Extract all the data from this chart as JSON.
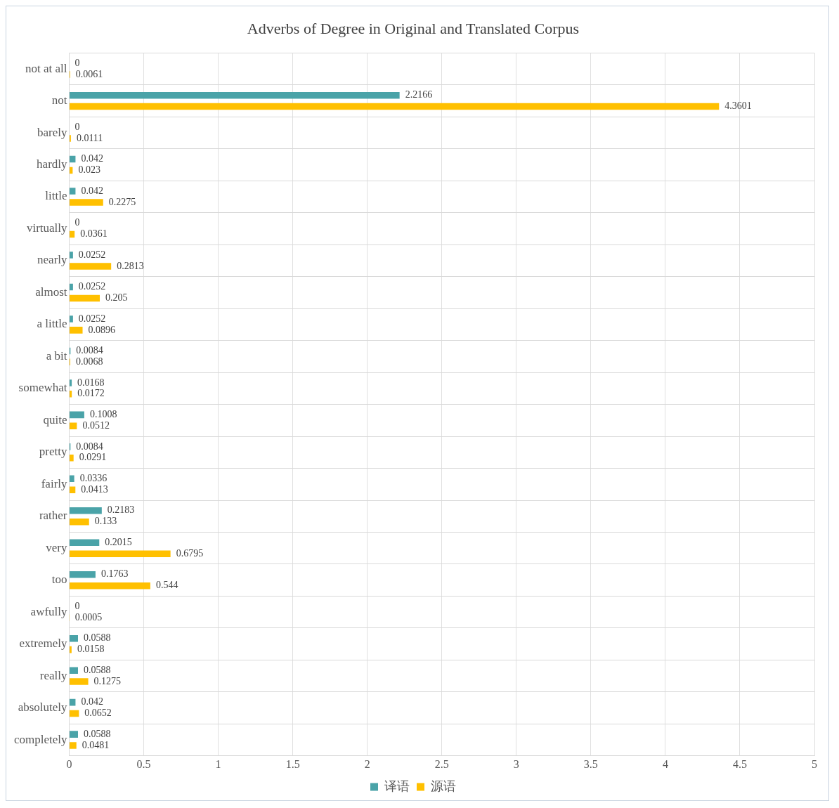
{
  "chart_data": {
    "type": "bar",
    "orientation": "horizontal",
    "title": "Adverbs of Degree in Original and Translated Corpus",
    "categories": [
      "not at all",
      "not",
      "barely",
      "hardly",
      "little",
      "virtually",
      "nearly",
      "almost",
      "a little",
      "a bit",
      "somewhat",
      "quite",
      "pretty",
      "fairly",
      "rather",
      "very",
      "too",
      "awfully",
      "extremely",
      "really",
      "absolutely",
      "completely"
    ],
    "series": [
      {
        "name": "译语",
        "color": "#4aa3a8",
        "values": [
          0,
          2.2166,
          0,
          0.042,
          0.042,
          0,
          0.0252,
          0.0252,
          0.0252,
          0.0084,
          0.0168,
          0.1008,
          0.0084,
          0.0336,
          0.2183,
          0.2015,
          0.1763,
          0,
          0.0588,
          0.0588,
          0.042,
          0.0588
        ]
      },
      {
        "name": "源语",
        "color": "#ffc000",
        "values": [
          0.0061,
          4.3601,
          0.0111,
          0.023,
          0.2275,
          0.0361,
          0.2813,
          0.205,
          0.0896,
          0.0068,
          0.0172,
          0.0512,
          0.0291,
          0.0413,
          0.133,
          0.6795,
          0.544,
          0.0005,
          0.0158,
          0.1275,
          0.0652,
          0.0481
        ]
      }
    ],
    "xlim": [
      0,
      5
    ],
    "xticks": [
      0,
      0.5,
      1,
      1.5,
      2,
      2.5,
      3,
      3.5,
      4,
      4.5,
      5
    ],
    "grid": true,
    "legend": "bottom",
    "data_labels": true
  }
}
